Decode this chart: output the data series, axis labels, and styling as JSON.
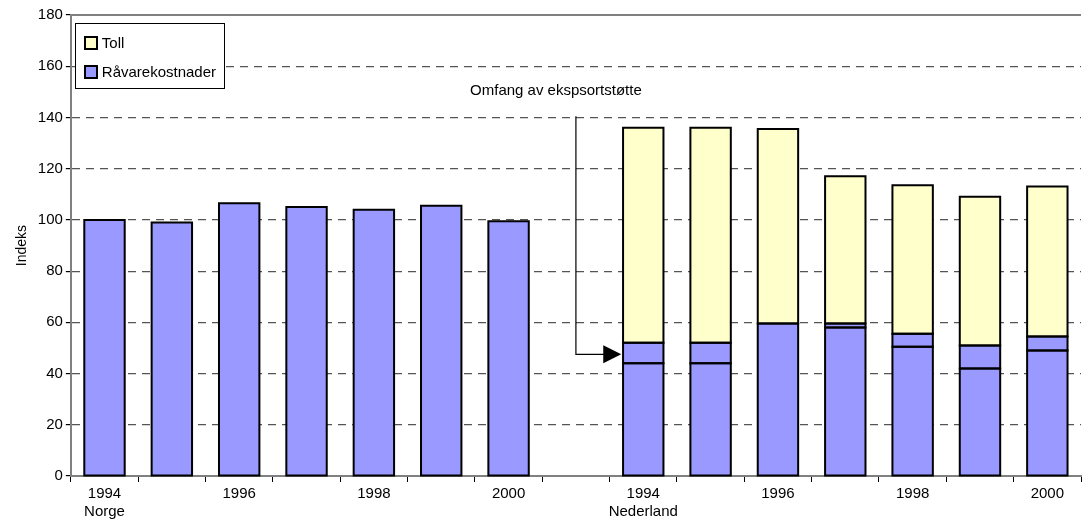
{
  "chart_data": {
    "type": "bar",
    "stacked": true,
    "ylabel": "Indeks",
    "categories": [
      "1994\nNorge",
      null,
      "1996",
      null,
      "1998",
      null,
      "2000",
      null,
      "1994\nNederland",
      null,
      "1996",
      null,
      "1998",
      null,
      "2000"
    ],
    "series": [
      {
        "name": "Råvarekostnader",
        "color": "#9999ff",
        "values": [
          100,
          99,
          106.5,
          105,
          104,
          105.5,
          99.5,
          null,
          44,
          44,
          59.5,
          58,
          50.5,
          42,
          49
        ]
      },
      {
        "color": "#9999ff",
        "values": [
          null,
          null,
          null,
          null,
          null,
          null,
          null,
          null,
          8,
          8,
          null,
          1.5,
          5,
          9,
          5.5
        ]
      },
      {
        "name": "Toll",
        "color": "#ffffcc",
        "values": [
          null,
          null,
          null,
          null,
          null,
          null,
          null,
          null,
          84,
          84,
          76,
          57.5,
          58,
          58,
          58.5
        ]
      }
    ],
    "ylim": [
      0,
      180
    ],
    "yticks": [
      0,
      20,
      40,
      60,
      80,
      100,
      120,
      140,
      160,
      180
    ],
    "grid": "y",
    "legend": "top left",
    "annotations": [
      "Omfang av ekspsortstøtte"
    ]
  }
}
